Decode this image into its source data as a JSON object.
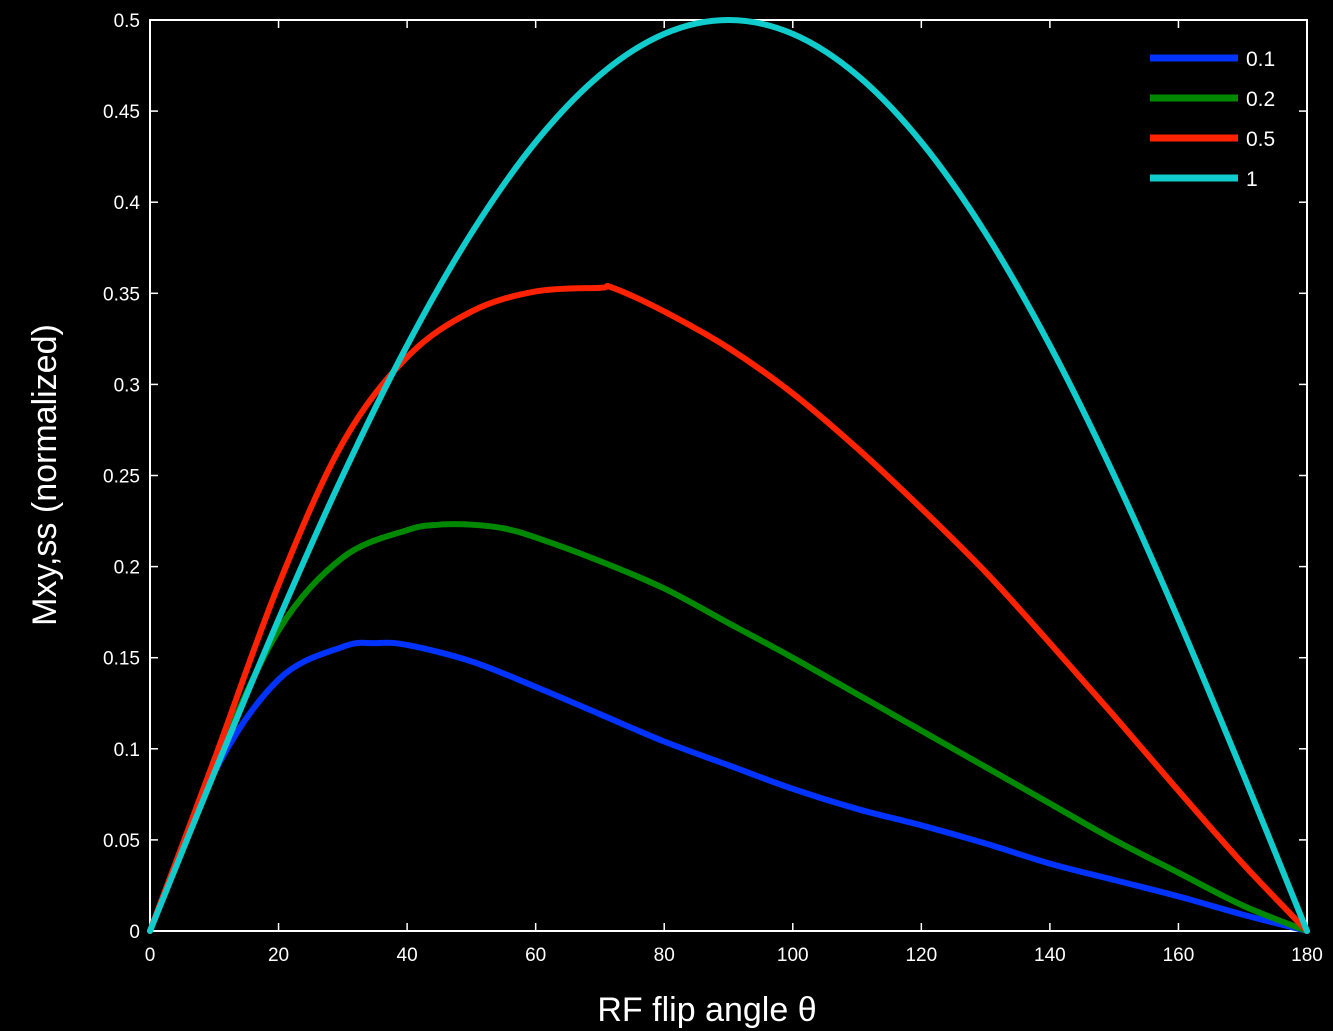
{
  "chart_data": {
    "type": "line",
    "title": "",
    "xlabel": "RF flip angle  θ",
    "ylabel": "Mxy,ss (normalized)",
    "xlim": [
      0,
      180
    ],
    "ylim": [
      0,
      0.5
    ],
    "xticks": [
      0,
      20,
      40,
      60,
      80,
      100,
      120,
      140,
      160,
      180
    ],
    "yticks": [
      0,
      0.05,
      0.1,
      0.15,
      0.2,
      0.25,
      0.3,
      0.35,
      0.4,
      0.45,
      0.5
    ],
    "grid": false,
    "legend_position": "top-right",
    "background": "#000000",
    "axes_color": "#ffffff",
    "series": [
      {
        "name": "0.1",
        "color": "#0033ff",
        "x": [
          0,
          10,
          20,
          30,
          35,
          40,
          50,
          60,
          70,
          80,
          90,
          100,
          110,
          120,
          130,
          140,
          150,
          160,
          170,
          180
        ],
        "y": [
          0,
          0.087,
          0.138,
          0.156,
          0.158,
          0.157,
          0.148,
          0.134,
          0.119,
          0.104,
          0.091,
          0.078,
          0.067,
          0.058,
          0.048,
          0.037,
          0.028,
          0.019,
          0.009,
          0
        ]
      },
      {
        "name": "0.2",
        "color": "#008800",
        "x": [
          0,
          10,
          20,
          30,
          40,
          45,
          50,
          55,
          60,
          70,
          80,
          90,
          100,
          110,
          120,
          130,
          140,
          150,
          160,
          170,
          180
        ],
        "y": [
          0,
          0.09,
          0.165,
          0.205,
          0.22,
          0.223,
          0.223,
          0.221,
          0.216,
          0.203,
          0.188,
          0.169,
          0.15,
          0.13,
          0.11,
          0.09,
          0.07,
          0.05,
          0.032,
          0.014,
          0
        ]
      },
      {
        "name": "0.5",
        "color": "#ff2200",
        "x": [
          0,
          10,
          20,
          30,
          40,
          50,
          60,
          70,
          72,
          80,
          90,
          100,
          110,
          120,
          130,
          140,
          150,
          160,
          170,
          180
        ],
        "y": [
          0,
          0.094,
          0.19,
          0.268,
          0.315,
          0.34,
          0.351,
          0.353,
          0.353,
          0.34,
          0.32,
          0.295,
          0.265,
          0.232,
          0.197,
          0.158,
          0.118,
          0.077,
          0.037,
          0
        ]
      },
      {
        "name": "1",
        "color": "#11cccc",
        "x": [
          0,
          10,
          20,
          30,
          40,
          50,
          60,
          70,
          80,
          90,
          100,
          110,
          120,
          130,
          140,
          150,
          160,
          170,
          180
        ],
        "y": [
          0,
          0.0868,
          0.171,
          0.25,
          0.3214,
          0.383,
          0.433,
          0.4698,
          0.4924,
          0.5,
          0.4924,
          0.4698,
          0.433,
          0.383,
          0.3214,
          0.25,
          0.171,
          0.0868,
          0
        ]
      }
    ]
  }
}
